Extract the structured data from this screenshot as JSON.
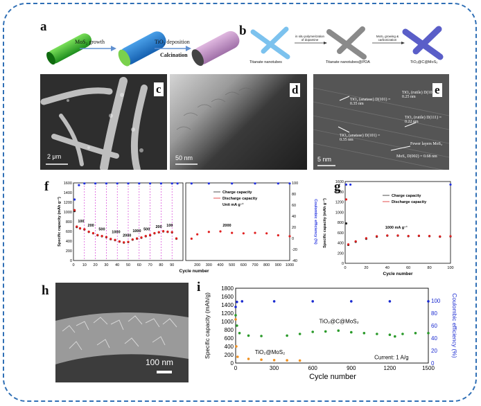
{
  "panels": {
    "a": "a",
    "b": "b",
    "c": "c",
    "d": "d",
    "e": "e",
    "f": "f",
    "g": "g",
    "h": "h",
    "i": "i"
  },
  "scheme_a": {
    "step1": "MoS₂ growth",
    "step2_line1": "TiO₂ deposition",
    "step2_line2": "Calcination"
  },
  "scheme_b": {
    "step1": "in situ polymerization of dopamine",
    "step2": "MoS₂ growing & carbonization",
    "label1": "Titanate nanotubes",
    "label2": "Titanate nanotubes@PDA",
    "label3": "TiO₂@C@MoS₂"
  },
  "images": {
    "c_scale": "2 μm",
    "d_scale": "50 nm",
    "e_scale": "5 nm",
    "h_scale": "100 nm",
    "e_annotations": [
      "TiO₂ (anatase) D(101) = 0.35 nm",
      "TiO₂ (rutile) D(101) = 0.25 nm",
      "TiO₂ (rutile) D(111) = 0.22 nm",
      "TiO₂ (anatase) D(101) = 0.35 nm",
      "Fewer layers MoS₂",
      "MoS₂ D(002) = 0.68 nm"
    ]
  },
  "chart_data": [
    {
      "panel": "f",
      "type": "scatter",
      "xlabel": "Cycle number",
      "ylabel": "Specific capacity (mAh g⁻¹)",
      "y2label": "Coulombic efficiency (%)",
      "xticks": [
        "0",
        "10",
        "20",
        "30",
        "40",
        "50",
        "60",
        "70",
        "80",
        "90",
        "200",
        "300",
        "400",
        "500",
        "600",
        "700",
        "800",
        "900",
        "1000"
      ],
      "yticks": [
        "0",
        "200",
        "400",
        "600",
        "800",
        "1000",
        "1200",
        "1400",
        "1600"
      ],
      "y2ticks": [
        "-40",
        "-20",
        "0",
        "20",
        "40",
        "60",
        "80",
        "100"
      ],
      "legend": [
        "Charge capacity",
        "Discharge capacity"
      ],
      "legend_note": "Unit mA g⁻¹",
      "rate_labels": [
        "100",
        "200",
        "500",
        "1000",
        "2000",
        "1000",
        "500",
        "200",
        "100",
        "2000"
      ],
      "series": [
        {
          "name": "Charge capacity",
          "color": "#222222",
          "points": [
            [
              1,
              1020
            ],
            [
              3,
              690
            ],
            [
              6,
              660
            ],
            [
              10,
              640
            ],
            [
              14,
              590
            ],
            [
              18,
              560
            ],
            [
              22,
              520
            ],
            [
              26,
              500
            ],
            [
              30,
              480
            ],
            [
              34,
              440
            ],
            [
              38,
              420
            ],
            [
              42,
              390
            ],
            [
              46,
              370
            ],
            [
              50,
              380
            ],
            [
              54,
              430
            ],
            [
              58,
              450
            ],
            [
              62,
              470
            ],
            [
              66,
              500
            ],
            [
              70,
              520
            ],
            [
              74,
              560
            ],
            [
              78,
              580
            ],
            [
              82,
              600
            ],
            [
              86,
              590
            ],
            [
              90,
              580
            ],
            [
              94,
              450
            ]
          ]
        },
        {
          "name": "Discharge capacity",
          "color": "#e02020",
          "points": [
            [
              1,
              1040
            ],
            [
              3,
              700
            ],
            [
              6,
              665
            ],
            [
              10,
              645
            ],
            [
              14,
              595
            ],
            [
              18,
              565
            ],
            [
              22,
              525
            ],
            [
              26,
              505
            ],
            [
              30,
              485
            ],
            [
              34,
              445
            ],
            [
              38,
              425
            ],
            [
              42,
              395
            ],
            [
              46,
              375
            ],
            [
              50,
              385
            ],
            [
              54,
              435
            ],
            [
              58,
              455
            ],
            [
              62,
              475
            ],
            [
              66,
              505
            ],
            [
              70,
              525
            ],
            [
              74,
              565
            ],
            [
              78,
              585
            ],
            [
              82,
              605
            ],
            [
              86,
              595
            ],
            [
              90,
              585
            ],
            [
              94,
              455
            ],
            [
              150,
              450
            ],
            [
              200,
              540
            ],
            [
              300,
              590
            ],
            [
              400,
              600
            ],
            [
              500,
              570
            ],
            [
              600,
              560
            ],
            [
              700,
              570
            ],
            [
              800,
              560
            ],
            [
              900,
              520
            ],
            [
              1000,
              500
            ]
          ]
        },
        {
          "name": "Coulombic efficiency",
          "color": "#2030e0",
          "axis": "right",
          "points": [
            [
              1,
              70
            ],
            [
              5,
              96
            ],
            [
              10,
              99
            ],
            [
              20,
              99
            ],
            [
              30,
              99
            ],
            [
              40,
              99
            ],
            [
              50,
              99
            ],
            [
              60,
              99
            ],
            [
              70,
              99
            ],
            [
              80,
              99
            ],
            [
              90,
              99
            ],
            [
              95,
              99
            ],
            [
              150,
              99
            ],
            [
              300,
              99
            ],
            [
              500,
              99
            ],
            [
              700,
              99
            ],
            [
              900,
              99
            ],
            [
              1000,
              99
            ]
          ]
        }
      ]
    },
    {
      "panel": "g",
      "type": "scatter",
      "xlabel": "Cycle number",
      "ylabel": "Specific capacity (mAh g⁻¹)",
      "xticks": [
        "0",
        "20",
        "40",
        "60",
        "80",
        "100"
      ],
      "yticks": [
        "0",
        "200",
        "400",
        "600",
        "800",
        "1000",
        "1200",
        "1400",
        "1600"
      ],
      "legend": [
        "Charge capacity",
        "Discharge capacity"
      ],
      "annotation": "1000 mA g⁻¹",
      "series": [
        {
          "name": "Charge capacity",
          "color": "#222222",
          "points": [
            [
              1,
              780
            ],
            [
              3,
              360
            ],
            [
              10,
              420
            ],
            [
              20,
              480
            ],
            [
              30,
              520
            ],
            [
              40,
              540
            ],
            [
              50,
              540
            ],
            [
              60,
              530
            ],
            [
              70,
              535
            ],
            [
              80,
              530
            ],
            [
              90,
              520
            ],
            [
              100,
              525
            ]
          ]
        },
        {
          "name": "Discharge capacity",
          "color": "#e02020",
          "points": [
            [
              1,
              1250
            ],
            [
              3,
              370
            ],
            [
              10,
              430
            ],
            [
              20,
              490
            ],
            [
              30,
              530
            ],
            [
              40,
              545
            ],
            [
              50,
              545
            ],
            [
              60,
              535
            ],
            [
              70,
              540
            ],
            [
              80,
              535
            ],
            [
              90,
              525
            ],
            [
              100,
              530
            ]
          ]
        },
        {
          "name": "Coulombic efficiency",
          "color": "#2030e0",
          "points": [
            [
              1,
              1540
            ],
            [
              5,
              1540
            ],
            [
              100,
              1540
            ]
          ]
        }
      ]
    },
    {
      "panel": "i",
      "type": "scatter",
      "xlabel": "Cycle number",
      "ylabel": "Specific capacity (mAh/g)",
      "y2label": "Coulombic efficiency (%)",
      "xticks": [
        "0",
        "300",
        "600",
        "900",
        "1200",
        "1500"
      ],
      "yticks": [
        "0",
        "200",
        "400",
        "600",
        "800",
        "1000",
        "1200",
        "1400",
        "1600",
        "1800"
      ],
      "y2ticks": [
        "0",
        "20",
        "40",
        "60",
        "80",
        "100"
      ],
      "annotation": "Current: 1 A/g",
      "series": [
        {
          "name": "TiO₂@C@MoS₂",
          "color": "#2a9a2a",
          "points": [
            [
              0,
              1150
            ],
            [
              10,
              900
            ],
            [
              30,
              720
            ],
            [
              100,
              660
            ],
            [
              200,
              650
            ],
            [
              400,
              660
            ],
            [
              500,
              700
            ],
            [
              600,
              750
            ],
            [
              700,
              760
            ],
            [
              800,
              780
            ],
            [
              900,
              740
            ],
            [
              1000,
              720
            ],
            [
              1100,
              700
            ],
            [
              1200,
              680
            ],
            [
              1240,
              640
            ],
            [
              1300,
              700
            ],
            [
              1400,
              720
            ],
            [
              1500,
              720
            ]
          ]
        },
        {
          "name": "TiO₂@MoS₂",
          "color": "#f09020",
          "points": [
            [
              0,
              1050
            ],
            [
              5,
              400
            ],
            [
              15,
              150
            ],
            [
              100,
              100
            ],
            [
              200,
              80
            ],
            [
              300,
              70
            ],
            [
              400,
              65
            ],
            [
              500,
              60
            ]
          ]
        },
        {
          "name": "Coulombic efficiency",
          "color": "#1a2ad0",
          "axis": "right",
          "points": [
            [
              0,
              90
            ],
            [
              10,
              98
            ],
            [
              50,
              99
            ],
            [
              300,
              99
            ],
            [
              600,
              99
            ],
            [
              900,
              99
            ],
            [
              1200,
              99
            ],
            [
              1500,
              99
            ]
          ]
        }
      ]
    }
  ]
}
